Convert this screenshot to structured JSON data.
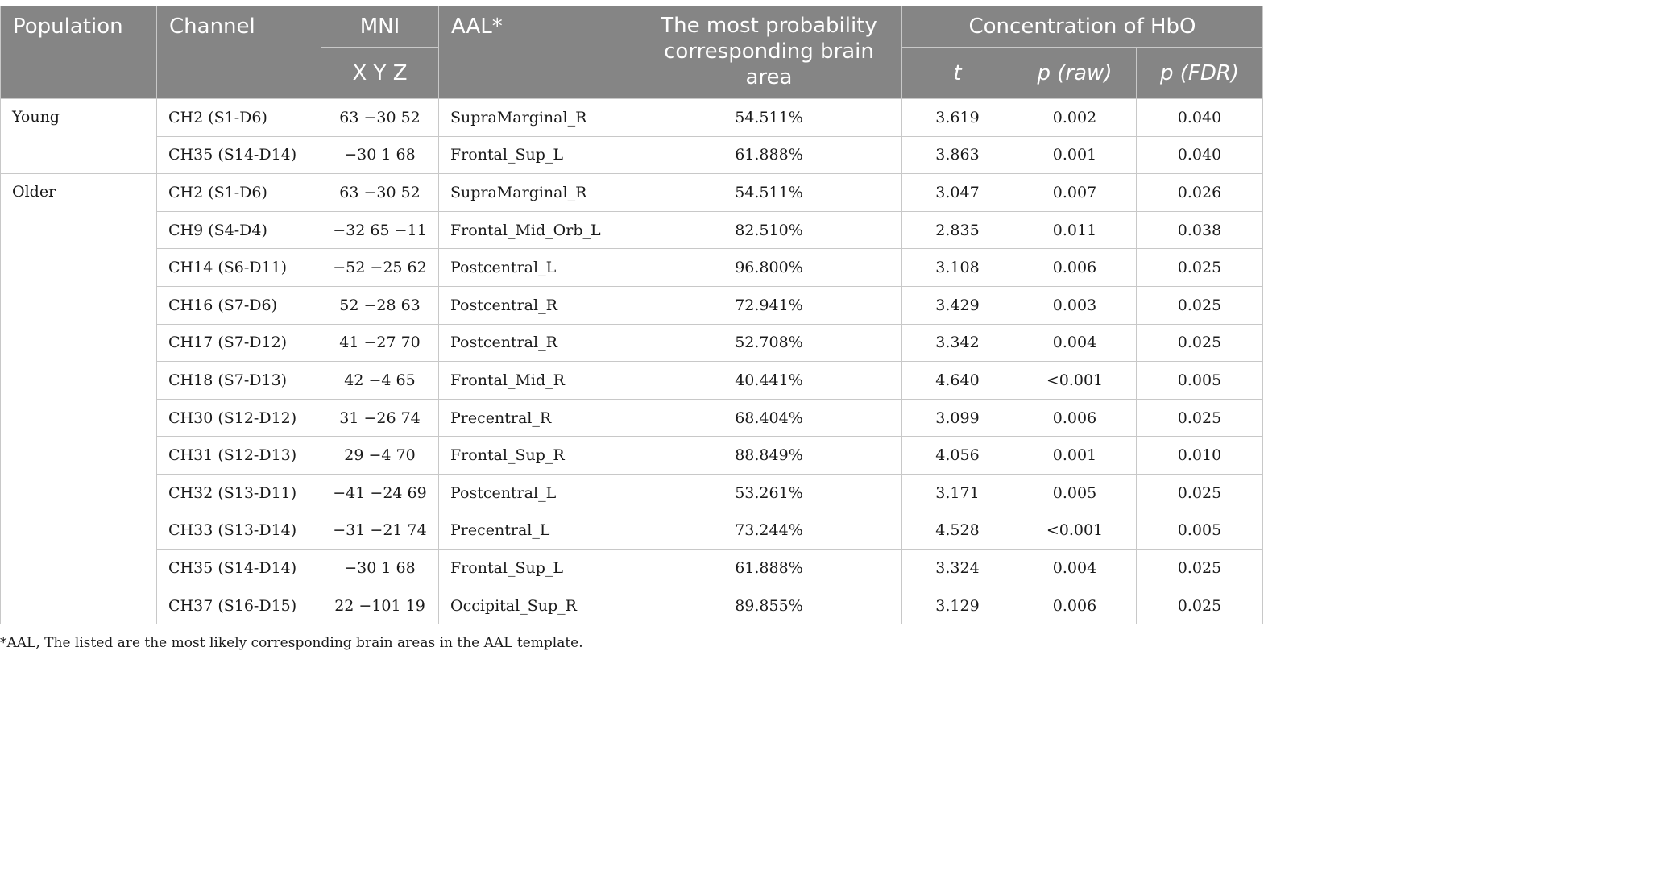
{
  "header": {
    "population": "Population",
    "channel": "Channel",
    "mni": "MNI",
    "mni_sub": "X Y Z",
    "aal": "AAL*",
    "brain_area": "The most probability corresponding brain area",
    "concentration": "Concentration of HbO",
    "t": "t",
    "p_raw": "p (raw)",
    "p_fdr": "p (FDR)"
  },
  "groups": [
    {
      "population": "Young",
      "rows": [
        {
          "channel": "CH2 (S1-D6)",
          "mni": "63 −30 52",
          "aal": "SupraMarginal_R",
          "prob": "54.511%",
          "t": "3.619",
          "p_raw": "0.002",
          "p_fdr": "0.040"
        },
        {
          "channel": "CH35 (S14-D14)",
          "mni": "−30 1 68",
          "aal": "Frontal_Sup_L",
          "prob": "61.888%",
          "t": "3.863",
          "p_raw": "0.001",
          "p_fdr": "0.040"
        }
      ]
    },
    {
      "population": "Older",
      "rows": [
        {
          "channel": "CH2 (S1-D6)",
          "mni": "63 −30 52",
          "aal": "SupraMarginal_R",
          "prob": "54.511%",
          "t": "3.047",
          "p_raw": "0.007",
          "p_fdr": "0.026"
        },
        {
          "channel": "CH9 (S4-D4)",
          "mni": "−32 65 −11",
          "aal": "Frontal_Mid_Orb_L",
          "prob": "82.510%",
          "t": "2.835",
          "p_raw": "0.011",
          "p_fdr": "0.038"
        },
        {
          "channel": "CH14 (S6-D11)",
          "mni": "−52 −25 62",
          "aal": "Postcentral_L",
          "prob": "96.800%",
          "t": "3.108",
          "p_raw": "0.006",
          "p_fdr": "0.025"
        },
        {
          "channel": "CH16 (S7-D6)",
          "mni": "52 −28 63",
          "aal": "Postcentral_R",
          "prob": "72.941%",
          "t": "3.429",
          "p_raw": "0.003",
          "p_fdr": "0.025"
        },
        {
          "channel": "CH17 (S7-D12)",
          "mni": "41 −27 70",
          "aal": "Postcentral_R",
          "prob": "52.708%",
          "t": "3.342",
          "p_raw": "0.004",
          "p_fdr": "0.025"
        },
        {
          "channel": "CH18 (S7-D13)",
          "mni": "42 −4 65",
          "aal": "Frontal_Mid_R",
          "prob": "40.441%",
          "t": "4.640",
          "p_raw": "<0.001",
          "p_fdr": "0.005"
        },
        {
          "channel": "CH30 (S12-D12)",
          "mni": "31 −26 74",
          "aal": "Precentral_R",
          "prob": "68.404%",
          "t": "3.099",
          "p_raw": "0.006",
          "p_fdr": "0.025"
        },
        {
          "channel": "CH31 (S12-D13)",
          "mni": "29 −4 70",
          "aal": "Frontal_Sup_R",
          "prob": "88.849%",
          "t": "4.056",
          "p_raw": "0.001",
          "p_fdr": "0.010"
        },
        {
          "channel": "CH32 (S13-D11)",
          "mni": "−41 −24 69",
          "aal": "Postcentral_L",
          "prob": "53.261%",
          "t": "3.171",
          "p_raw": "0.005",
          "p_fdr": "0.025"
        },
        {
          "channel": "CH33 (S13-D14)",
          "mni": "−31 −21 74",
          "aal": "Precentral_L",
          "prob": "73.244%",
          "t": "4.528",
          "p_raw": "<0.001",
          "p_fdr": "0.005"
        },
        {
          "channel": "CH35 (S14-D14)",
          "mni": "−30 1 68",
          "aal": "Frontal_Sup_L",
          "prob": "61.888%",
          "t": "3.324",
          "p_raw": "0.004",
          "p_fdr": "0.025"
        },
        {
          "channel": "CH37 (S16-D15)",
          "mni": "22 −101 19",
          "aal": "Occipital_Sup_R",
          "prob": "89.855%",
          "t": "3.129",
          "p_raw": "0.006",
          "p_fdr": "0.025"
        }
      ]
    }
  ],
  "footnote": "*AAL, The listed are the most likely corresponding brain areas in the AAL template."
}
